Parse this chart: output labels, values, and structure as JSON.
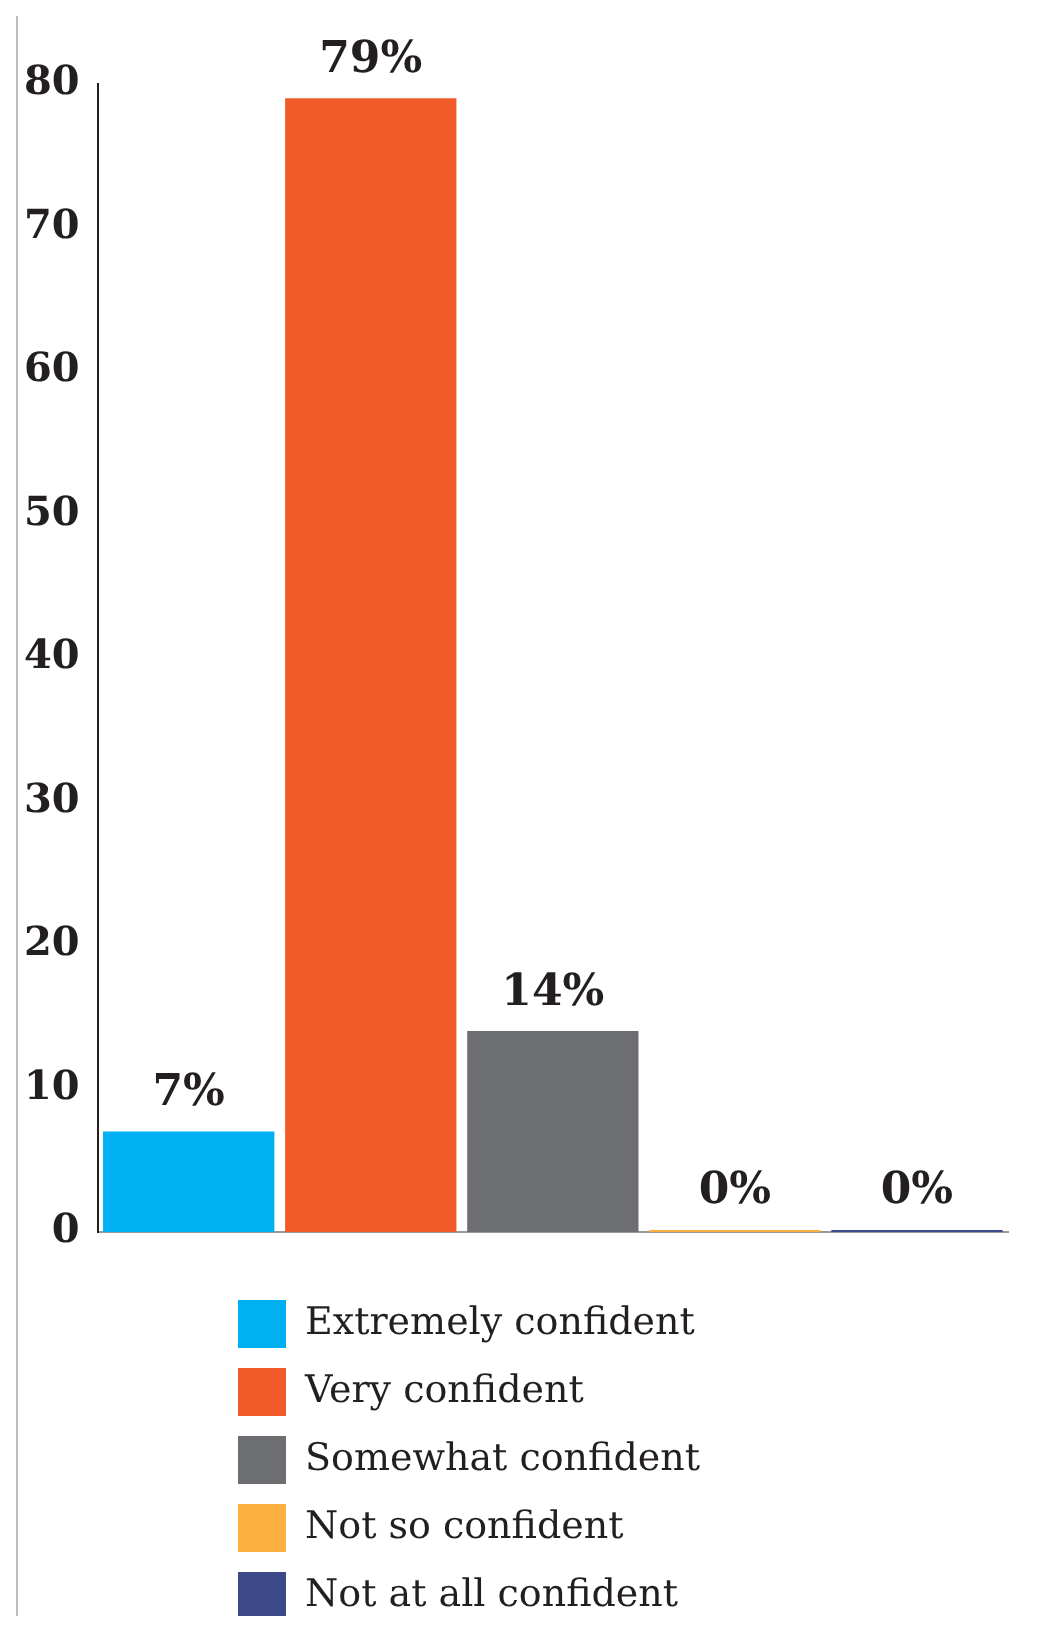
{
  "chart_data": {
    "type": "bar",
    "categories": [
      null,
      null,
      null,
      null,
      null
    ],
    "series": [
      {
        "name": "Extremely confident",
        "color": "#00b0f0",
        "values": [
          7,
          null,
          null,
          null,
          null
        ],
        "value_labels": [
          "7%",
          null,
          null,
          null,
          null
        ]
      },
      {
        "name": "Very confident",
        "color": "#f15a29",
        "values": [
          null,
          79,
          null,
          null,
          null
        ],
        "value_labels": [
          null,
          "79%",
          null,
          null,
          null
        ]
      },
      {
        "name": "Somewhat confident",
        "color": "#6d6e71",
        "values": [
          null,
          null,
          14,
          null,
          null
        ],
        "value_labels": [
          null,
          null,
          "14%",
          null,
          null
        ]
      },
      {
        "name": "Not so confident",
        "color": "#fbb040",
        "values": [
          null,
          null,
          null,
          0,
          null
        ],
        "value_labels": [
          null,
          null,
          null,
          "0%",
          null
        ]
      },
      {
        "name": "Not at all confident",
        "color": "#3c4a8a",
        "values": [
          null,
          null,
          null,
          null,
          0
        ],
        "value_labels": [
          null,
          null,
          null,
          null,
          "0%"
        ]
      }
    ],
    "ylim": [
      0,
      80
    ],
    "yticks": [
      0,
      10,
      20,
      30,
      40,
      50,
      60,
      70,
      80
    ],
    "tick_labels": "y",
    "grid": false,
    "legend": "bottom"
  }
}
